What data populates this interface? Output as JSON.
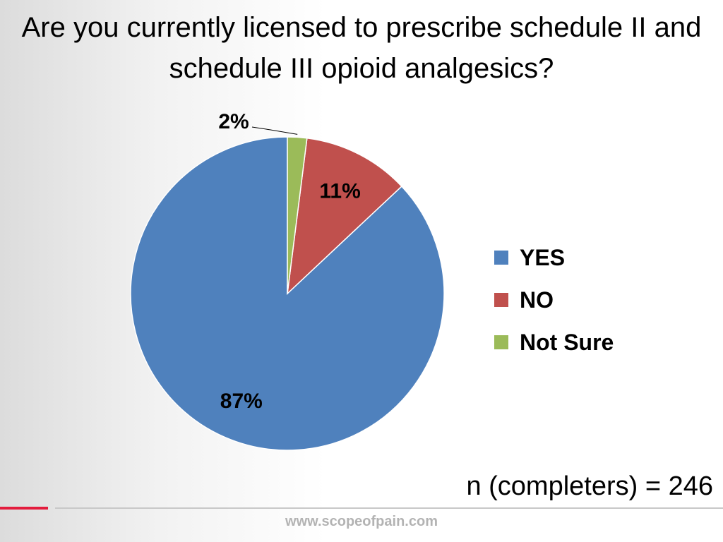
{
  "slide": {
    "title": "Are you currently licensed to prescribe schedule II and schedule III opioid analgesics?",
    "footnote": "n (completers) = 246",
    "footer_url": "www.scopeofpain.com",
    "accent_color": "#e31c3d",
    "rule_color": "#c8c8c8"
  },
  "chart_data": {
    "type": "pie",
    "title": "Are you currently licensed to prescribe schedule II and schedule III opioid analgesics?",
    "categories": [
      "YES",
      "NO",
      "Not Sure"
    ],
    "values": [
      87,
      11,
      2
    ],
    "data_labels": [
      "87%",
      "11%",
      "2%"
    ],
    "colors": [
      "#4f81bd",
      "#c0504d",
      "#9bbb59"
    ],
    "legend_position": "right",
    "start_angle": "12 o'clock",
    "direction": "counterclockwise"
  }
}
